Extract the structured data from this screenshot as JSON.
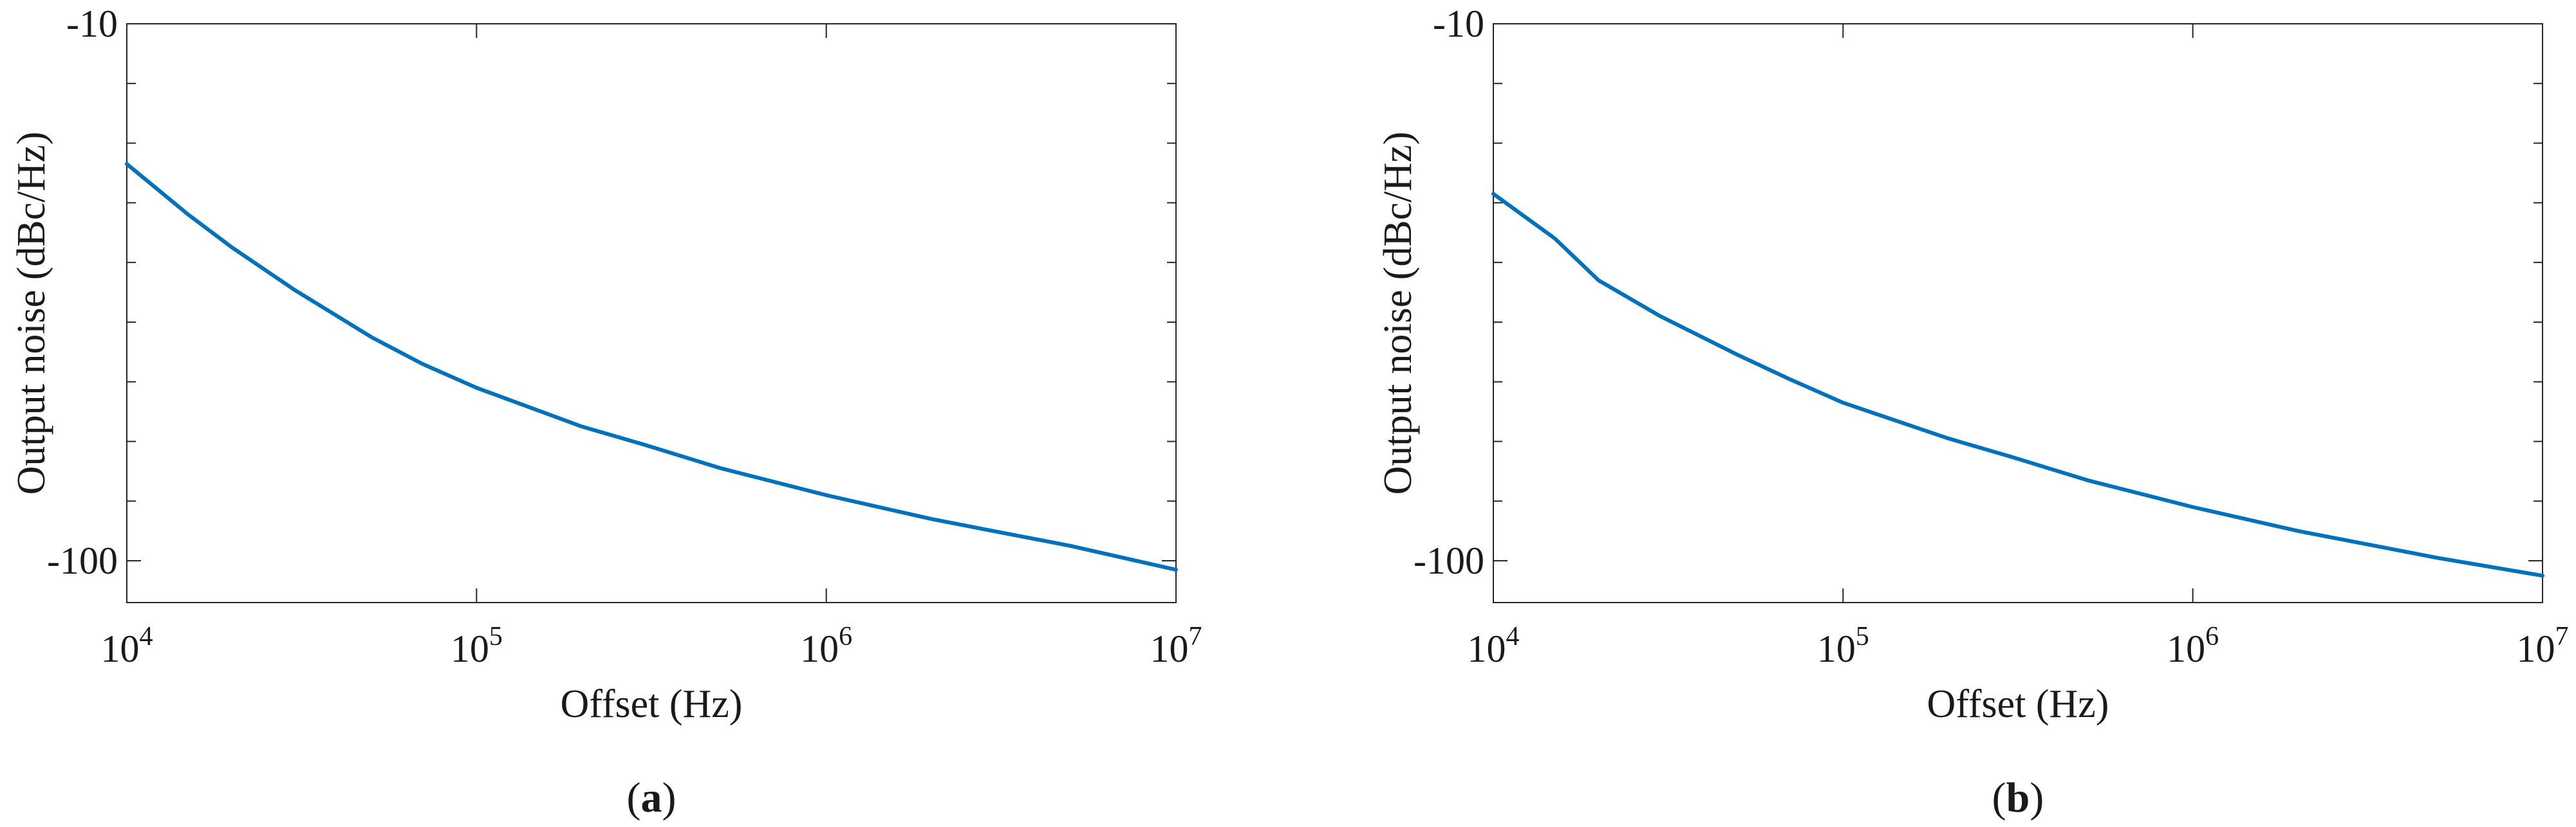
{
  "chart_data": [
    {
      "panel_label": "a",
      "type": "line",
      "x_scale": "log",
      "xlabel": "Offset (Hz)",
      "ylabel": "Output noise (dBc/Hz)",
      "xlim": [
        10000,
        10000000
      ],
      "ylim": [
        -107,
        -10
      ],
      "xticks": [
        {
          "value": 10000,
          "base": "10",
          "exp": "4"
        },
        {
          "value": 100000,
          "base": "10",
          "exp": "5"
        },
        {
          "value": 1000000,
          "base": "10",
          "exp": "6"
        },
        {
          "value": 10000000,
          "base": "10",
          "exp": "7"
        }
      ],
      "yticks": [
        {
          "value": -10,
          "label": "-10"
        },
        {
          "value": -100,
          "label": "-100"
        }
      ],
      "series": [
        {
          "color": "#0072BD",
          "x": [
            10000,
            15000,
            20000,
            30000,
            50000,
            70000,
            100000,
            200000,
            300000,
            500000,
            1000000,
            2000000,
            3000000,
            5000000,
            10000000
          ],
          "y": [
            -33.5,
            -42.0,
            -47.5,
            -54.5,
            -62.5,
            -67.0,
            -71.0,
            -77.5,
            -80.5,
            -84.5,
            -89.0,
            -93.0,
            -95.0,
            -97.5,
            -101.5
          ]
        }
      ]
    },
    {
      "panel_label": "b",
      "type": "line",
      "x_scale": "log",
      "xlabel": "Offset (Hz)",
      "ylabel": "Output noise (dBc/Hz)",
      "xlim": [
        10000,
        10000000
      ],
      "ylim": [
        -107,
        -10
      ],
      "xticks": [
        {
          "value": 10000,
          "base": "10",
          "exp": "4"
        },
        {
          "value": 100000,
          "base": "10",
          "exp": "5"
        },
        {
          "value": 1000000,
          "base": "10",
          "exp": "6"
        },
        {
          "value": 10000000,
          "base": "10",
          "exp": "7"
        }
      ],
      "yticks": [
        {
          "value": -10,
          "label": "-10"
        },
        {
          "value": -100,
          "label": "-100"
        }
      ],
      "series": [
        {
          "color": "#0072BD",
          "x": [
            10000,
            15000,
            20000,
            30000,
            50000,
            70000,
            100000,
            200000,
            300000,
            500000,
            1000000,
            2000000,
            3000000,
            5000000,
            10000000
          ],
          "y": [
            -38.5,
            -46.0,
            -53.0,
            -59.0,
            -65.5,
            -69.5,
            -73.5,
            -79.5,
            -82.5,
            -86.5,
            -91.0,
            -95.0,
            -97.0,
            -99.5,
            -102.5
          ]
        }
      ]
    }
  ]
}
